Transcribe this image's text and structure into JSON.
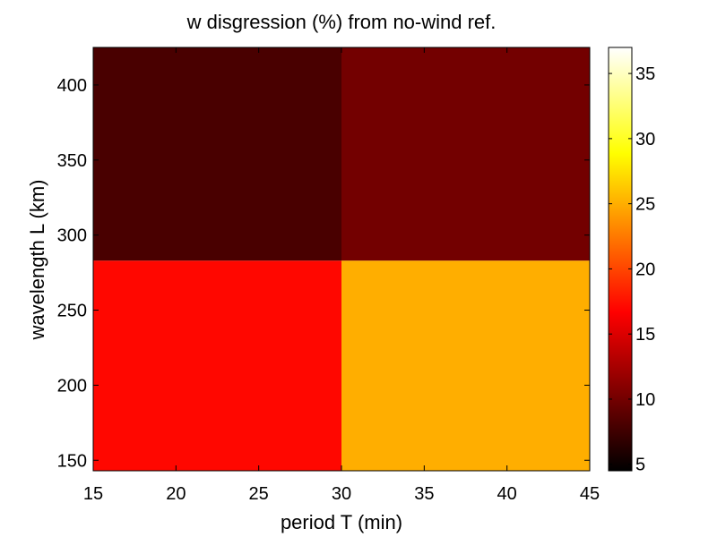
{
  "chart_data": {
    "type": "heatmap",
    "title": "w disgression (%) from no-wind ref.",
    "xlabel": "period T (min)",
    "ylabel": "wavelength L (km)",
    "xlim": [
      15,
      45
    ],
    "ylim": [
      143,
      425
    ],
    "xticks": [
      15,
      20,
      25,
      30,
      35,
      40,
      45
    ],
    "yticks": [
      150,
      200,
      250,
      300,
      350,
      400
    ],
    "cells": [
      {
        "x0": 15,
        "x1": 30,
        "y0": 143,
        "y1": 283,
        "value": 17
      },
      {
        "x0": 30,
        "x1": 45,
        "y0": 143,
        "y1": 283,
        "value": 25
      },
      {
        "x0": 15,
        "x1": 30,
        "y0": 283,
        "y1": 425,
        "value": 8
      },
      {
        "x0": 30,
        "x1": 45,
        "y0": 283,
        "y1": 425,
        "value": 10
      }
    ],
    "colormap": "hot",
    "colorbar": {
      "min": 4.5,
      "max": 37,
      "ticks": [
        5,
        10,
        15,
        20,
        25,
        30,
        35
      ]
    }
  }
}
